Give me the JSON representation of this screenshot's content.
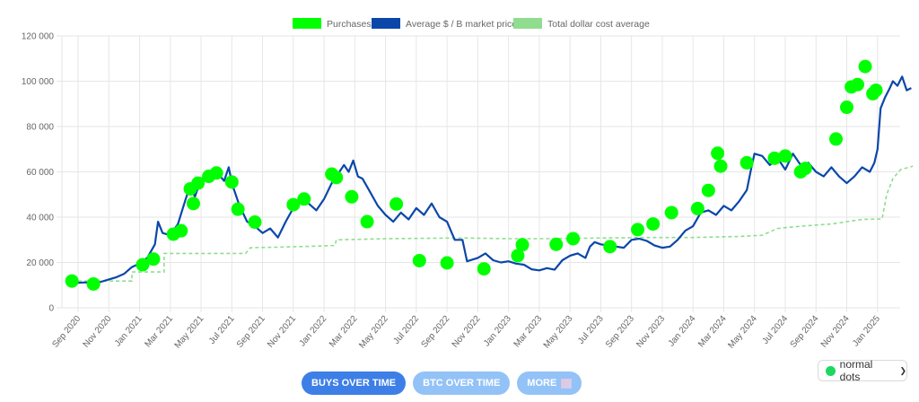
{
  "legend": {
    "purchases": "Purchases",
    "market_price": "Average $ / B market price",
    "dca": "Total dollar cost average"
  },
  "colors": {
    "purchases": "#00ff00",
    "market_price": "#0a47a8",
    "dca": "#90dd90",
    "grid": "#e6e6e6",
    "active_button": "#3d7fe6",
    "inactive_button": "#93c2f7",
    "select_dot": "#1ed760"
  },
  "buttons": {
    "buys_over_time": "BUYS OVER TIME",
    "btc_over_time": "BTC OVER TIME",
    "more": "MORE"
  },
  "dot_select": {
    "value": "normal dots"
  },
  "chart_data": {
    "type": "line",
    "title": "",
    "xlabel": "",
    "ylabel": "",
    "ylim": [
      0,
      120000
    ],
    "grid": true,
    "legend_position": "top",
    "y_ticks": [
      "0",
      "20 000",
      "40 000",
      "60 000",
      "80 000",
      "100 000",
      "120 000"
    ],
    "x_ticks": [
      "Sep 2020",
      "Nov 2020",
      "Jan 2021",
      "Mar 2021",
      "May 2021",
      "Jul 2021",
      "Sep 2021",
      "Nov 2021",
      "Jan 2022",
      "Mar 2022",
      "May 2022",
      "Jul 2022",
      "Sep 2022",
      "Nov 2022",
      "Jan 2023",
      "Mar 2023",
      "May 2023",
      "Jul 2023",
      "Sep 2023",
      "Nov 2023",
      "Jan 2024",
      "Mar 2024",
      "May 2024",
      "Jul 2024",
      "Sep 2024",
      "Nov 2024",
      "Jan 2025"
    ],
    "series": [
      {
        "name": "Average $ / B market price",
        "type": "line",
        "points": [
          [
            -0.4,
            11800
          ],
          [
            0,
            11000
          ],
          [
            0.5,
            11200
          ],
          [
            1,
            10500
          ],
          [
            1.5,
            11500
          ],
          [
            2,
            12500
          ],
          [
            2.5,
            13500
          ],
          [
            3,
            15000
          ],
          [
            3.5,
            18000
          ],
          [
            4,
            19500
          ],
          [
            4.5,
            22000
          ],
          [
            5,
            28000
          ],
          [
            5.2,
            38000
          ],
          [
            5.5,
            33000
          ],
          [
            6,
            32000
          ],
          [
            6.5,
            37000
          ],
          [
            7,
            48000
          ],
          [
            7.3,
            54000
          ],
          [
            7.6,
            49000
          ],
          [
            8,
            57000
          ],
          [
            8.5,
            58000
          ],
          [
            9,
            60000
          ],
          [
            9.5,
            56000
          ],
          [
            9.8,
            62000
          ],
          [
            10,
            55000
          ],
          [
            10.5,
            45000
          ],
          [
            11,
            38000
          ],
          [
            11.5,
            36000
          ],
          [
            12,
            33000
          ],
          [
            12.5,
            35000
          ],
          [
            13,
            31000
          ],
          [
            13.5,
            38000
          ],
          [
            14,
            44000
          ],
          [
            14.5,
            47000
          ],
          [
            15,
            46000
          ],
          [
            15.5,
            43000
          ],
          [
            16,
            48000
          ],
          [
            16.5,
            55000
          ],
          [
            17,
            60000
          ],
          [
            17.3,
            63000
          ],
          [
            17.6,
            60000
          ],
          [
            17.9,
            65000
          ],
          [
            18.2,
            58000
          ],
          [
            18.5,
            57000
          ],
          [
            19,
            51000
          ],
          [
            19.5,
            45000
          ],
          [
            20,
            41000
          ],
          [
            20.5,
            38000
          ],
          [
            21,
            42000
          ],
          [
            21.5,
            39000
          ],
          [
            22,
            44000
          ],
          [
            22.5,
            41000
          ],
          [
            23,
            46000
          ],
          [
            23.5,
            40000
          ],
          [
            24,
            38000
          ],
          [
            24.5,
            30000
          ],
          [
            25,
            30000
          ],
          [
            25.3,
            20500
          ],
          [
            26,
            22000
          ],
          [
            26.5,
            24000
          ],
          [
            27,
            21000
          ],
          [
            27.5,
            20000
          ],
          [
            28,
            20500
          ],
          [
            28.5,
            19500
          ],
          [
            29,
            19000
          ],
          [
            29.5,
            17000
          ],
          [
            30,
            16500
          ],
          [
            30.5,
            17500
          ],
          [
            31,
            16800
          ],
          [
            31.5,
            21000
          ],
          [
            32,
            23000
          ],
          [
            32.5,
            24000
          ],
          [
            33,
            22000
          ],
          [
            33.3,
            27000
          ],
          [
            33.6,
            29000
          ],
          [
            34,
            28000
          ],
          [
            34.5,
            27500
          ],
          [
            35,
            27000
          ],
          [
            35.5,
            26500
          ],
          [
            36,
            30000
          ],
          [
            36.5,
            30500
          ],
          [
            37,
            29500
          ],
          [
            37.5,
            27500
          ],
          [
            38,
            26500
          ],
          [
            38.5,
            27000
          ],
          [
            39,
            30000
          ],
          [
            39.5,
            34000
          ],
          [
            40,
            36000
          ],
          [
            40.5,
            42000
          ],
          [
            41,
            43000
          ],
          [
            41.5,
            41000
          ],
          [
            42,
            45000
          ],
          [
            42.5,
            43000
          ],
          [
            43,
            47000
          ],
          [
            43.5,
            52000
          ],
          [
            43.8,
            62000
          ],
          [
            44,
            68000
          ],
          [
            44.5,
            67000
          ],
          [
            45,
            63000
          ],
          [
            45.5,
            66000
          ],
          [
            46,
            61000
          ],
          [
            46.5,
            68000
          ],
          [
            47,
            63000
          ],
          [
            47.5,
            64000
          ],
          [
            48,
            60000
          ],
          [
            48.5,
            58000
          ],
          [
            49,
            62000
          ],
          [
            49.5,
            58000
          ],
          [
            50,
            55000
          ],
          [
            50.5,
            58000
          ],
          [
            51,
            62000
          ],
          [
            51.5,
            60000
          ],
          [
            51.8,
            64000
          ],
          [
            52,
            70000
          ],
          [
            52.2,
            88000
          ],
          [
            52.5,
            93000
          ],
          [
            52.8,
            97000
          ],
          [
            53,
            100000
          ],
          [
            53.3,
            98000
          ],
          [
            53.6,
            102000
          ],
          [
            53.9,
            96000
          ],
          [
            54.2,
            97000
          ]
        ]
      },
      {
        "name": "Total dollar cost average",
        "type": "step-dashed",
        "points": [
          [
            -0.4,
            11800
          ],
          [
            3.5,
            11800
          ],
          [
            3.5,
            15800
          ],
          [
            5.6,
            15800
          ],
          [
            5.6,
            24000
          ],
          [
            10.9,
            24000
          ],
          [
            11.2,
            26500
          ],
          [
            14.5,
            27000
          ],
          [
            16.7,
            27500
          ],
          [
            16.8,
            30000
          ],
          [
            20,
            30500
          ],
          [
            25,
            30800
          ],
          [
            28,
            30500
          ],
          [
            31,
            30500
          ],
          [
            34,
            30800
          ],
          [
            37,
            31000
          ],
          [
            40,
            31000
          ],
          [
            43,
            31500
          ],
          [
            44.5,
            32000
          ],
          [
            45.5,
            35000
          ],
          [
            47,
            36000
          ],
          [
            49,
            37000
          ],
          [
            51,
            39000
          ],
          [
            52.3,
            39200
          ],
          [
            52.6,
            50000
          ],
          [
            53,
            57000
          ],
          [
            53.5,
            61000
          ],
          [
            54.3,
            62500
          ]
        ]
      },
      {
        "name": "Purchases",
        "type": "scatter",
        "points": [
          [
            -0.4,
            11800
          ],
          [
            1,
            10500
          ],
          [
            4.2,
            19000
          ],
          [
            4.9,
            21500
          ],
          [
            6.2,
            32500
          ],
          [
            6.7,
            34000
          ],
          [
            7.3,
            52500
          ],
          [
            7.5,
            46000
          ],
          [
            7.8,
            55000
          ],
          [
            8.5,
            58000
          ],
          [
            9,
            59500
          ],
          [
            10,
            55500
          ],
          [
            10.4,
            43500
          ],
          [
            11.5,
            37800
          ],
          [
            14,
            45500
          ],
          [
            14.7,
            48000
          ],
          [
            16.5,
            59000
          ],
          [
            16.8,
            57500
          ],
          [
            17.8,
            49000
          ],
          [
            18.8,
            38000
          ],
          [
            20.7,
            45800
          ],
          [
            22.2,
            20800
          ],
          [
            24,
            19800
          ],
          [
            26.4,
            17200
          ],
          [
            28.6,
            23000
          ],
          [
            28.9,
            27800
          ],
          [
            31.1,
            28000
          ],
          [
            32.2,
            30500
          ],
          [
            34.6,
            27000
          ],
          [
            36.4,
            34500
          ],
          [
            37.4,
            37000
          ],
          [
            38.6,
            42000
          ],
          [
            40.3,
            43800
          ],
          [
            41,
            51800
          ],
          [
            41.6,
            68200
          ],
          [
            41.8,
            62500
          ],
          [
            43.5,
            64000
          ],
          [
            45.3,
            66000
          ],
          [
            46,
            67000
          ],
          [
            47,
            60000
          ],
          [
            47.3,
            61500
          ],
          [
            49.3,
            74500
          ],
          [
            50,
            88500
          ],
          [
            50.3,
            97500
          ],
          [
            50.7,
            98500
          ],
          [
            51.2,
            106500
          ],
          [
            51.7,
            94500
          ],
          [
            51.9,
            96000
          ]
        ]
      }
    ]
  }
}
